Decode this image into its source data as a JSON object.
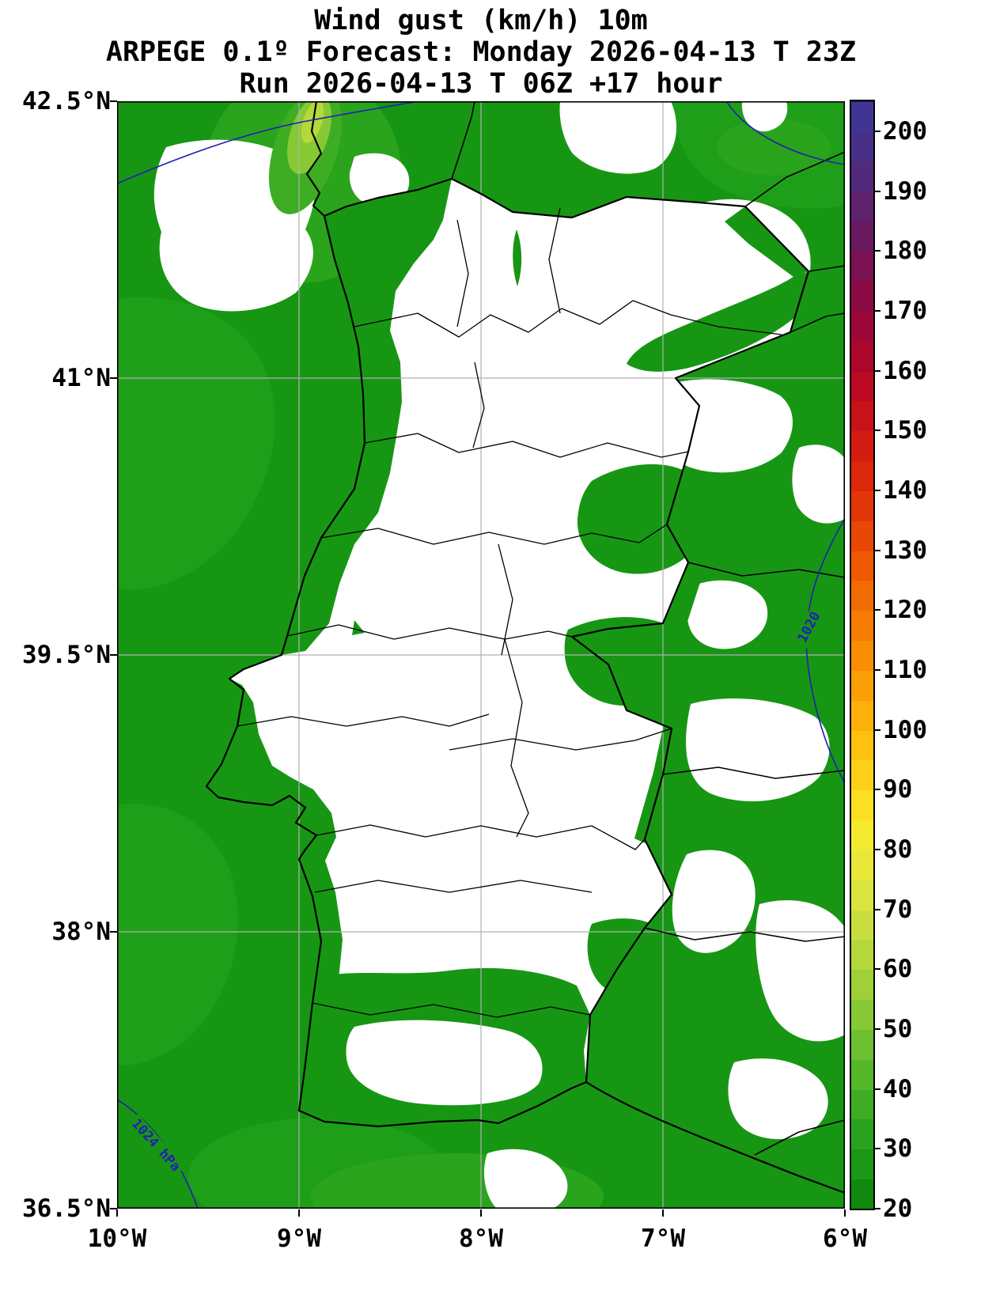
{
  "header": {
    "title_line1": "Wind gust (km/h) 10m",
    "title_line2": "ARPEGE 0.1º Forecast: Monday 2026-04-13 T 23Z",
    "title_line3": "Run 2026-04-13 T 06Z +17 hour"
  },
  "map": {
    "lat_ticks": [
      "42.5°N",
      "41°N",
      "39.5°N",
      "38°N",
      "36.5°N"
    ],
    "lon_ticks": [
      "10°W",
      "9°W",
      "8°W",
      "7°W",
      "6°W"
    ],
    "isobar_labels": {
      "east": "1020",
      "southwest": "1024 hPa"
    },
    "colors": {
      "wind_20_30": "#179614",
      "below_threshold": "#ffffff",
      "isobar": "#2121b2",
      "grid": "#b0b0b0",
      "border": "#000000"
    }
  },
  "colorbar": {
    "min": 20,
    "max": 205,
    "tick_values": [
      20,
      30,
      40,
      50,
      60,
      70,
      80,
      90,
      100,
      110,
      120,
      130,
      140,
      150,
      160,
      170,
      180,
      190,
      200
    ],
    "segments": [
      {
        "from": 20,
        "to": 25,
        "color": "#0f8a0f"
      },
      {
        "from": 25,
        "to": 30,
        "color": "#1b9716"
      },
      {
        "from": 30,
        "to": 35,
        "color": "#29a31d"
      },
      {
        "from": 35,
        "to": 40,
        "color": "#3ead24"
      },
      {
        "from": 40,
        "to": 45,
        "color": "#55b72a"
      },
      {
        "from": 45,
        "to": 50,
        "color": "#6dc030"
      },
      {
        "from": 50,
        "to": 55,
        "color": "#87c935"
      },
      {
        "from": 55,
        "to": 60,
        "color": "#9fd039"
      },
      {
        "from": 60,
        "to": 65,
        "color": "#b5d83c"
      },
      {
        "from": 65,
        "to": 70,
        "color": "#c9de3e"
      },
      {
        "from": 70,
        "to": 75,
        "color": "#dae43e"
      },
      {
        "from": 75,
        "to": 80,
        "color": "#e9e83a"
      },
      {
        "from": 80,
        "to": 85,
        "color": "#f4ea30"
      },
      {
        "from": 85,
        "to": 90,
        "color": "#fae021"
      },
      {
        "from": 90,
        "to": 95,
        "color": "#fdd117"
      },
      {
        "from": 95,
        "to": 100,
        "color": "#fdc10e"
      },
      {
        "from": 100,
        "to": 105,
        "color": "#fcb009"
      },
      {
        "from": 105,
        "to": 110,
        "color": "#fa9f04"
      },
      {
        "from": 110,
        "to": 115,
        "color": "#f88e02"
      },
      {
        "from": 115,
        "to": 120,
        "color": "#f57c01"
      },
      {
        "from": 120,
        "to": 125,
        "color": "#f26b01"
      },
      {
        "from": 125,
        "to": 130,
        "color": "#ee5902"
      },
      {
        "from": 130,
        "to": 135,
        "color": "#e94705"
      },
      {
        "from": 135,
        "to": 140,
        "color": "#e33608"
      },
      {
        "from": 140,
        "to": 145,
        "color": "#db270c"
      },
      {
        "from": 145,
        "to": 150,
        "color": "#d21b11"
      },
      {
        "from": 150,
        "to": 155,
        "color": "#c81118"
      },
      {
        "from": 155,
        "to": 160,
        "color": "#bb0a21"
      },
      {
        "from": 160,
        "to": 165,
        "color": "#ac062b"
      },
      {
        "from": 165,
        "to": 170,
        "color": "#9c0737"
      },
      {
        "from": 170,
        "to": 175,
        "color": "#8b0a44"
      },
      {
        "from": 175,
        "to": 180,
        "color": "#7a1152"
      },
      {
        "from": 180,
        "to": 185,
        "color": "#6a1860"
      },
      {
        "from": 185,
        "to": 190,
        "color": "#5d216e"
      },
      {
        "from": 190,
        "to": 195,
        "color": "#522a7c"
      },
      {
        "from": 195,
        "to": 200,
        "color": "#483089"
      },
      {
        "from": 200,
        "to": 205,
        "color": "#403595"
      }
    ]
  }
}
